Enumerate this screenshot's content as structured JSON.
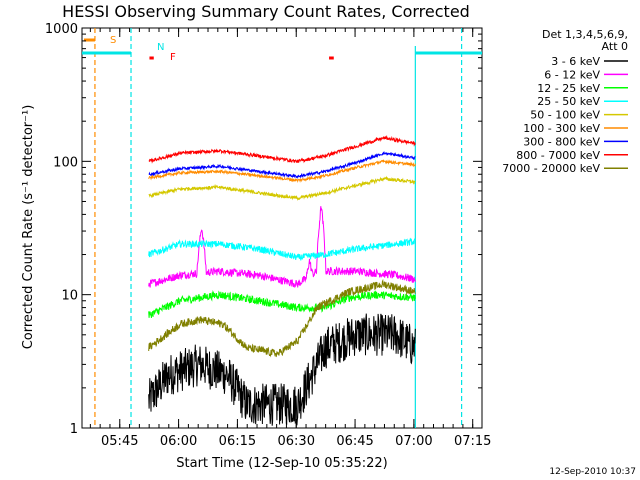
{
  "chart_data": {
    "type": "line",
    "title": "HESSI Observing Summary Count Rates, Corrected",
    "xlabel": "Start Time (12-Sep-10 05:35:22)",
    "ylabel": "Corrected Count Rate (s⁻¹ detector⁻¹)",
    "yscale": "log",
    "xlim_minutes": [
      0,
      102
    ],
    "ylim": [
      1,
      1000
    ],
    "x_ticks": [
      {
        "label": "05:45",
        "min": 9.63
      },
      {
        "label": "06:00",
        "min": 24.63
      },
      {
        "label": "06:15",
        "min": 39.63
      },
      {
        "label": "06:30",
        "min": 54.63
      },
      {
        "label": "06:45",
        "min": 69.63
      },
      {
        "label": "07:00",
        "min": 84.63
      },
      {
        "label": "07:15",
        "min": 99.63
      }
    ],
    "y_ticks": [
      {
        "label": "1",
        "value": 1
      },
      {
        "label": "10",
        "value": 10
      },
      {
        "label": "100",
        "value": 100
      },
      {
        "label": "1000",
        "value": 1000
      }
    ],
    "legend_header": [
      "Det 1,3,4,5,6,9,",
      "Att 0"
    ],
    "data_start_min": 17,
    "data_end_min": 85,
    "series": [
      {
        "name": "3 - 6 keV",
        "color": "#000000",
        "knots": [
          [
            17,
            1.6
          ],
          [
            22,
            2.5
          ],
          [
            30,
            3.0
          ],
          [
            37,
            2.5
          ],
          [
            42,
            1.5
          ],
          [
            55,
            1.5
          ],
          [
            62,
            4.0
          ],
          [
            70,
            5.0
          ],
          [
            80,
            5.0
          ],
          [
            85,
            4.0
          ]
        ],
        "noise": 0.16
      },
      {
        "name": "6 - 12 keV",
        "color": "#ff00ff",
        "knots": [
          [
            17,
            12
          ],
          [
            25,
            14
          ],
          [
            35,
            15
          ],
          [
            45,
            14
          ],
          [
            55,
            12
          ],
          [
            60,
            15
          ],
          [
            70,
            15
          ],
          [
            80,
            14
          ],
          [
            85,
            13
          ]
        ],
        "noise": 0.03,
        "spikes": [
          [
            30.5,
            32,
            1.2
          ],
          [
            58,
            18,
            0.8
          ],
          [
            61,
            46,
            1.2
          ]
        ]
      },
      {
        "name": "12 - 25 keV",
        "color": "#00ff00",
        "knots": [
          [
            17,
            7
          ],
          [
            25,
            9
          ],
          [
            35,
            10
          ],
          [
            45,
            9
          ],
          [
            55,
            8
          ],
          [
            62,
            8
          ],
          [
            68,
            9.5
          ],
          [
            75,
            10
          ],
          [
            85,
            9.5
          ]
        ],
        "noise": 0.03
      },
      {
        "name": "25 - 50 keV",
        "color": "#00ffff",
        "knots": [
          [
            17,
            20
          ],
          [
            25,
            24
          ],
          [
            35,
            24
          ],
          [
            45,
            22
          ],
          [
            55,
            19
          ],
          [
            62,
            20
          ],
          [
            70,
            22
          ],
          [
            80,
            24
          ],
          [
            85,
            25
          ]
        ],
        "noise": 0.025
      },
      {
        "name": "50 - 100 keV",
        "color": "#d4c800",
        "knots": [
          [
            17,
            55
          ],
          [
            25,
            62
          ],
          [
            35,
            64
          ],
          [
            45,
            58
          ],
          [
            55,
            53
          ],
          [
            62,
            58
          ],
          [
            70,
            66
          ],
          [
            77,
            74
          ],
          [
            85,
            70
          ]
        ],
        "noise": 0.012
      },
      {
        "name": "100 - 300 keV",
        "color": "#ff8c00",
        "knots": [
          [
            17,
            75
          ],
          [
            25,
            82
          ],
          [
            35,
            84
          ],
          [
            45,
            78
          ],
          [
            55,
            72
          ],
          [
            62,
            78
          ],
          [
            70,
            90
          ],
          [
            77,
            100
          ],
          [
            85,
            94
          ]
        ],
        "noise": 0.01
      },
      {
        "name": "300 - 800 keV",
        "color": "#0000ff",
        "knots": [
          [
            17,
            80
          ],
          [
            25,
            88
          ],
          [
            35,
            92
          ],
          [
            45,
            84
          ],
          [
            55,
            77
          ],
          [
            62,
            84
          ],
          [
            70,
            98
          ],
          [
            77,
            115
          ],
          [
            85,
            106
          ]
        ],
        "noise": 0.01
      },
      {
        "name": "800 - 7000 keV",
        "color": "#ff0000",
        "knots": [
          [
            17,
            100
          ],
          [
            25,
            115
          ],
          [
            35,
            120
          ],
          [
            45,
            110
          ],
          [
            55,
            100
          ],
          [
            62,
            110
          ],
          [
            70,
            130
          ],
          [
            77,
            150
          ],
          [
            85,
            136
          ]
        ],
        "noise": 0.012
      },
      {
        "name": "7000 - 20000 keV",
        "color": "#808000",
        "knots": [
          [
            17,
            4.0
          ],
          [
            25,
            6.0
          ],
          [
            30,
            6.5
          ],
          [
            36,
            6.0
          ],
          [
            42,
            4.0
          ],
          [
            50,
            3.6
          ],
          [
            55,
            4.5
          ],
          [
            60,
            8.0
          ],
          [
            68,
            10.5
          ],
          [
            77,
            12.0
          ],
          [
            85,
            10.5
          ]
        ],
        "noise": 0.03
      }
    ],
    "annotations": {
      "flag_labels": [
        "S",
        "N",
        "F"
      ],
      "cyan_dashed_min": [
        12.5,
        96.8
      ],
      "orange_dashed_min": [
        3.3
      ],
      "cyan_solid_min": [
        85
      ],
      "orange_segments": [
        [
          0.5,
          3.3
        ]
      ],
      "red_segments": [
        [
          17.2,
          18.3
        ],
        [
          63.0,
          64.2
        ]
      ],
      "cyan_segments": [
        [
          0,
          12.5
        ],
        [
          85,
          102
        ]
      ],
      "cyan_level": 650
    }
  },
  "footer": {
    "date": "12-Sep-2010 10:37"
  }
}
